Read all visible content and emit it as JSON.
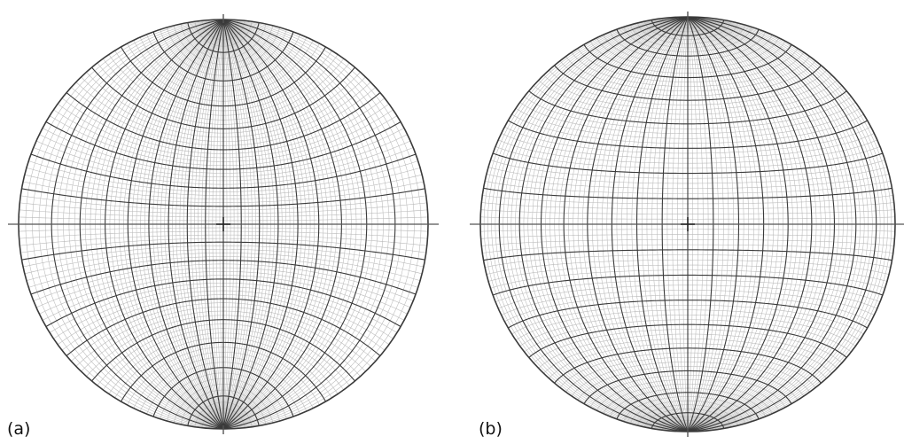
{
  "panels": [
    {
      "label": "(a)",
      "projection": "equal-angle",
      "minor_interval_deg": 2,
      "major_interval_deg": 10
    },
    {
      "label": "(b)",
      "projection": "equal-area",
      "minor_interval_deg": 2,
      "major_interval_deg": 10
    }
  ],
  "colors": {
    "minor_grid": "#b8b8b8",
    "major_grid": "#3a3a3a",
    "primitive": "#3a3a3a",
    "axes": "#555555"
  }
}
